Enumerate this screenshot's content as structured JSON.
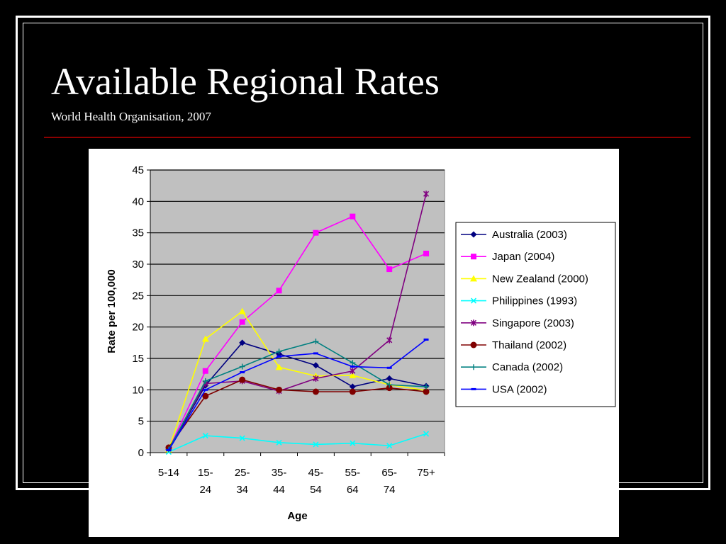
{
  "slide": {
    "title": "Available Regional Rates",
    "subtitle": "World Health Organisation, 2007",
    "accent_rule_color": "#8b0000"
  },
  "chart_data": {
    "type": "line",
    "xlabel": "Age",
    "ylabel": "Rate per 100,000",
    "ylim": [
      0,
      45
    ],
    "ytick_step": 5,
    "grid": true,
    "plot_background": "#c0c0c0",
    "legend_position": "right",
    "categories": [
      [
        "5-14"
      ],
      [
        "15-",
        "24"
      ],
      [
        "25-",
        "34"
      ],
      [
        "35-",
        "44"
      ],
      [
        "45-",
        "54"
      ],
      [
        "55-",
        "64"
      ],
      [
        "65-",
        "74"
      ],
      [
        "75+"
      ]
    ],
    "series": [
      {
        "name": "Australia (2003)",
        "color": "#000080",
        "marker": "diamond",
        "values": [
          0.5,
          10.7,
          17.5,
          15.7,
          13.9,
          10.5,
          11.8,
          10.6
        ]
      },
      {
        "name": "Japan (2004)",
        "color": "#ff00ff",
        "marker": "square",
        "values": [
          0.5,
          13.0,
          20.8,
          25.8,
          35.0,
          37.6,
          29.2,
          31.7
        ]
      },
      {
        "name": "New Zealand (2000)",
        "color": "#ffff00",
        "marker": "triangle",
        "values": [
          0.5,
          18.1,
          22.5,
          13.6,
          12.2,
          12.3,
          10.8,
          9.9
        ]
      },
      {
        "name": "Philippines (1993)",
        "color": "#00ffff",
        "marker": "x",
        "values": [
          0.1,
          2.7,
          2.3,
          1.6,
          1.3,
          1.5,
          1.1,
          3.0
        ]
      },
      {
        "name": "Singapore (2003)",
        "color": "#800080",
        "marker": "star",
        "values": [
          0.6,
          11.0,
          11.4,
          9.8,
          11.8,
          13.0,
          17.9,
          41.2
        ]
      },
      {
        "name": "Thailand (2002)",
        "color": "#800000",
        "marker": "circle",
        "values": [
          0.8,
          9.0,
          11.6,
          10.0,
          9.7,
          9.7,
          10.3,
          9.7
        ]
      },
      {
        "name": "Canada (2002)",
        "color": "#008080",
        "marker": "plus",
        "values": [
          0.5,
          11.4,
          13.7,
          16.1,
          17.7,
          14.3,
          10.8,
          10.5
        ]
      },
      {
        "name": "USA (2002)",
        "color": "#0000ff",
        "marker": "dash",
        "values": [
          0.4,
          10.0,
          12.8,
          15.3,
          15.8,
          13.7,
          13.5,
          18.0
        ]
      }
    ]
  }
}
